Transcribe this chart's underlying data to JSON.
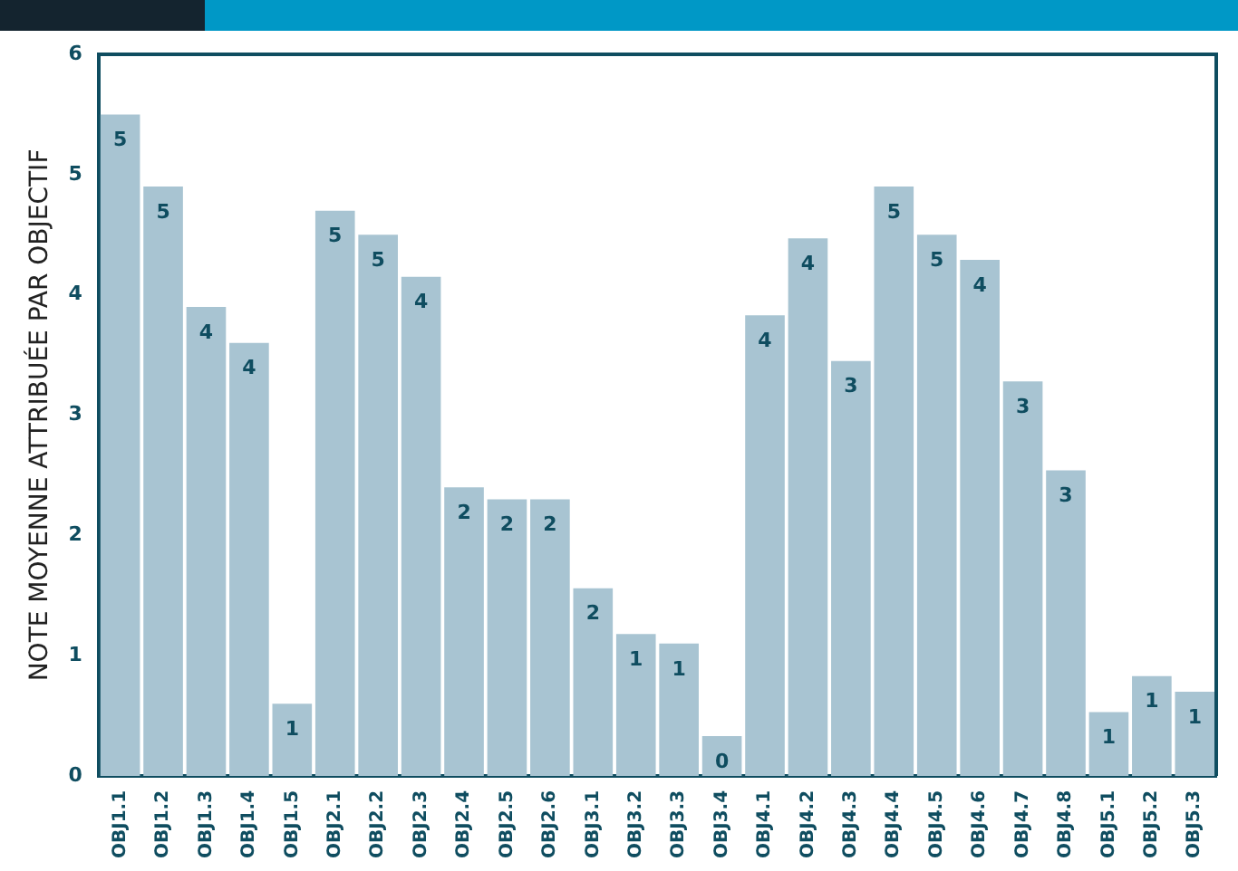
{
  "chart_data": {
    "type": "bar",
    "ylabel": "NOTE MOYENNE ATTRIBUÉE PAR OBJECTIF",
    "categories": [
      "OBJ1.1",
      "OBJ1.2",
      "OBJ1.3",
      "OBJ1.4",
      "OBJ1.5",
      "OBJ2.1",
      "OBJ2.2",
      "OBJ2.3",
      "OBJ2.4",
      "OBJ2.5",
      "OBJ2.6",
      "OBJ3.1",
      "OBJ3.2",
      "OBJ3.3",
      "OBJ3.4",
      "OBJ4.1",
      "OBJ4.2",
      "OBJ4.3",
      "OBJ4.4",
      "OBJ4.5",
      "OBJ4.6",
      "OBJ4.7",
      "OBJ4.8",
      "OBJ5.1",
      "OBJ5.2",
      "OBJ5.3"
    ],
    "values": [
      5.5,
      4.9,
      3.9,
      3.6,
      0.6,
      4.7,
      4.5,
      4.15,
      2.4,
      2.3,
      2.3,
      1.56,
      1.18,
      1.1,
      0.33,
      3.83,
      4.47,
      3.45,
      4.9,
      4.5,
      4.29,
      3.28,
      2.54,
      0.53,
      0.83,
      0.7
    ],
    "value_labels": [
      "5",
      "5",
      "4",
      "4",
      "1",
      "5",
      "5",
      "4",
      "2",
      "2",
      "2",
      "2",
      "1",
      "1",
      "0",
      "4",
      "4",
      "3",
      "5",
      "5",
      "4",
      "3",
      "3",
      "1",
      "1",
      "1"
    ],
    "color": "#a8c4d2",
    "ylim": [
      0,
      6
    ],
    "yticks": [
      0,
      1,
      2,
      3,
      4,
      5,
      6
    ],
    "grid": false,
    "legend": false
  }
}
